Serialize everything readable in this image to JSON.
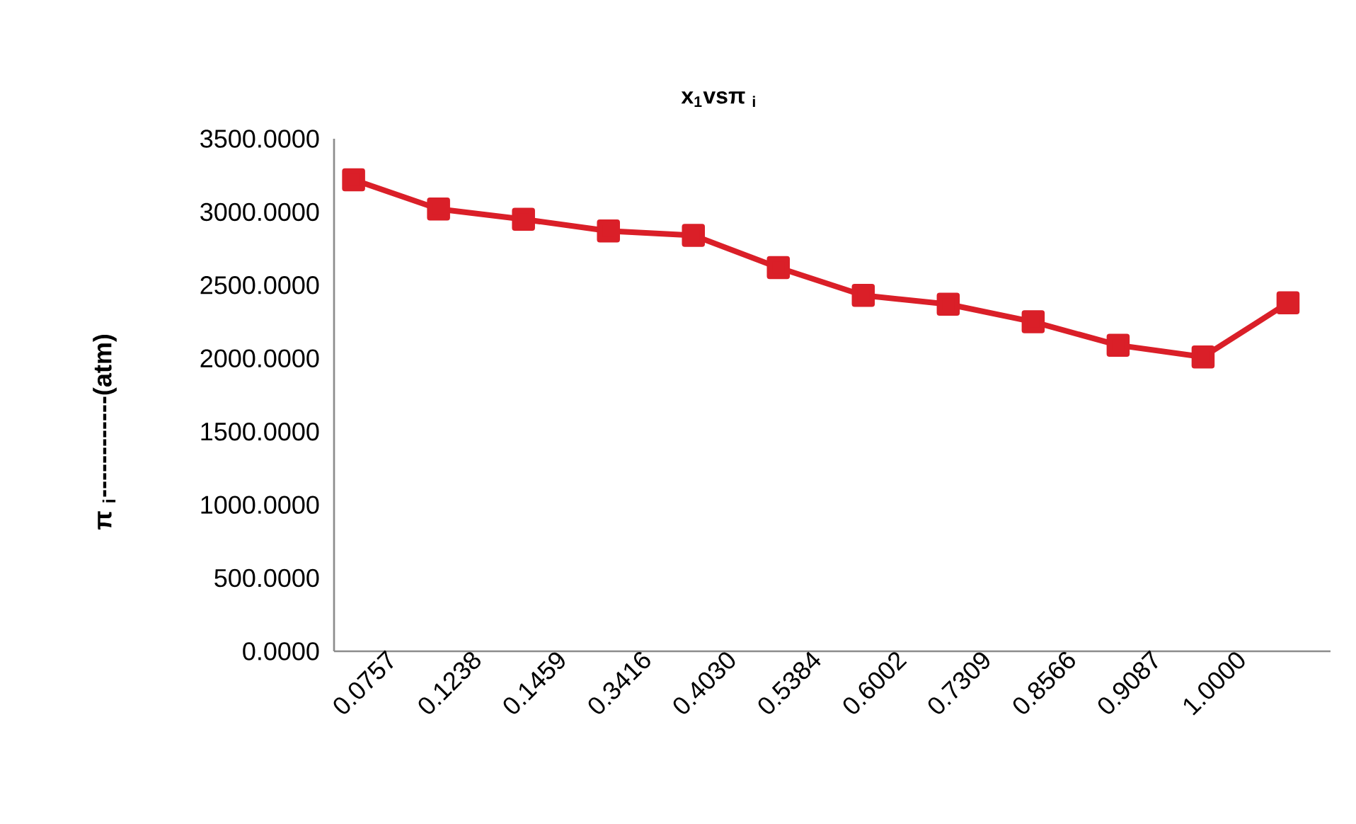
{
  "chart_data": {
    "type": "line",
    "title": "x$_{1}$vsπ $_{i}$",
    "ylabel": "π $_{i}$------------(atm)",
    "categories": [
      "0.0757",
      "0.1238",
      "0.1459",
      "0.3416",
      "0.4030",
      "0.5384",
      "0.6002",
      "0.7309",
      "0.8566",
      "0.9087",
      "1.0000",
      null
    ],
    "series": [
      {
        "color": "#da1f28",
        "values": [
          3220,
          3020,
          2950,
          2870,
          2840,
          2620,
          2430,
          2370,
          2250,
          2090,
          2010,
          2380
        ]
      }
    ],
    "ylim": [
      0,
      3500
    ],
    "yticks": [
      {
        "value": 0,
        "label": "0.0000"
      },
      {
        "value": 500,
        "label": "500.0000"
      },
      {
        "value": 1000,
        "label": "1000.0000"
      },
      {
        "value": 1500,
        "label": "1500.0000"
      },
      {
        "value": 2000,
        "label": "2000.0000"
      },
      {
        "value": 2500,
        "label": "2500.0000"
      },
      {
        "value": 3000,
        "label": "3000.0000"
      },
      {
        "value": 3500,
        "label": "3500.0000"
      }
    ],
    "marker": "square",
    "line_style": "solid",
    "grid": false
  }
}
